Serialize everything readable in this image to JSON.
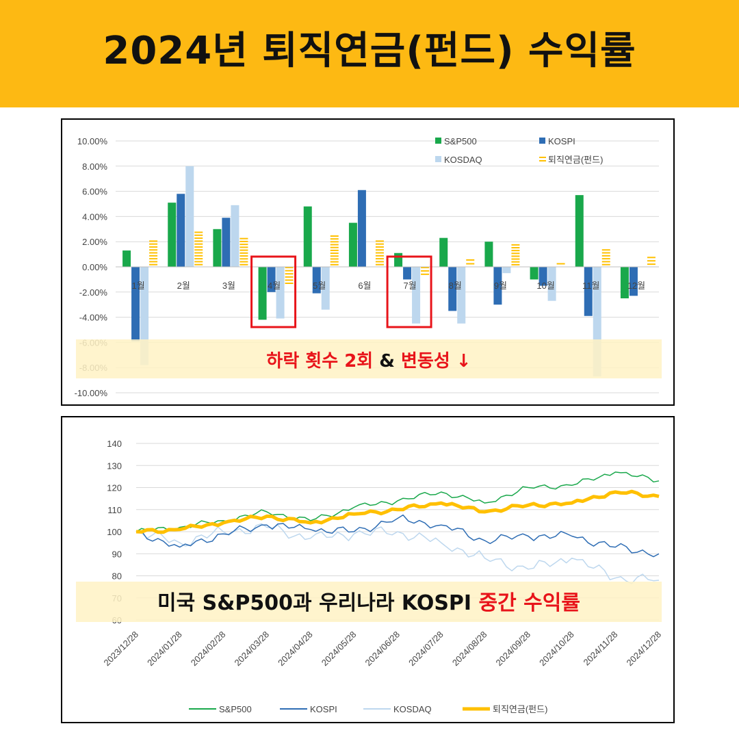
{
  "header": {
    "title": "2024년 퇴직연금(펀드) 수익률"
  },
  "colors": {
    "header_bg": "#FDB913",
    "sp500": "#19A84B",
    "kospi": "#2E6DB4",
    "kosdaq": "#BDD7EE",
    "pension": "#FFC000",
    "highlight": "#FFF2C4",
    "alert_red": "#E8141A"
  },
  "annotations": {
    "top_banner": {
      "part1": "하락 횟수 2회",
      "part2": " & ",
      "part3": "변동성 ↓"
    },
    "bottom_banner": {
      "part1": "미국 S&P500과 우리나라 KOSPI ",
      "part2": "중간 수익률"
    }
  },
  "chart_data": [
    {
      "type": "bar",
      "categories": [
        "1월",
        "2월",
        "3월",
        "4월",
        "5월",
        "6월",
        "7월",
        "8월",
        "9월",
        "10월",
        "11월",
        "12월"
      ],
      "ylim": [
        -10,
        10
      ],
      "yticks": [
        "10.00%",
        "8.00%",
        "6.00%",
        "4.00%",
        "2.00%",
        "0.00%",
        "-2.00%",
        "-4.00%",
        "-6.00%",
        "-8.00%",
        "-10.00%"
      ],
      "grid": true,
      "legend_position": "top-right",
      "series": [
        {
          "name": "S&P500",
          "values": [
            1.3,
            5.1,
            3.0,
            -4.2,
            4.8,
            3.5,
            1.1,
            2.3,
            2.0,
            -1.0,
            5.7,
            -2.5
          ]
        },
        {
          "name": "KOSPI",
          "values": [
            -5.9,
            5.8,
            3.9,
            -2.0,
            -2.1,
            6.1,
            -1.0,
            -3.5,
            -3.0,
            -1.5,
            -3.9,
            -2.3
          ]
        },
        {
          "name": "KOSDAQ",
          "values": [
            -7.8,
            8.0,
            4.9,
            -4.1,
            -3.4,
            0.0,
            -4.5,
            -4.5,
            -0.5,
            -2.7,
            -8.7,
            0.0
          ]
        },
        {
          "name": "퇴직연금(펀드)",
          "values": [
            2.1,
            2.8,
            2.3,
            -1.5,
            2.5,
            2.1,
            -0.8,
            0.6,
            1.8,
            0.3,
            1.4,
            0.8
          ]
        }
      ],
      "highlight_boxes": [
        "4월",
        "7월"
      ]
    },
    {
      "type": "line",
      "ylim": [
        60,
        140
      ],
      "yticks": [
        140,
        130,
        120,
        110,
        100,
        90,
        80,
        70,
        60
      ],
      "x_ticks": [
        "2023/12/28",
        "2024/01/28",
        "2024/02/28",
        "2024/03/28",
        "2024/04/28",
        "2024/05/28",
        "2024/06/28",
        "2024/07/28",
        "2024/08/28",
        "2024/09/28",
        "2024/10/28",
        "2024/11/28",
        "2024/12/28"
      ],
      "grid": true,
      "legend_position": "bottom",
      "series": [
        {
          "name": "S&P500",
          "values": [
            100,
            102,
            105,
            109,
            105,
            111,
            114,
            118,
            113,
            120,
            121,
            127,
            123
          ]
        },
        {
          "name": "KOSPI",
          "values": [
            100,
            93,
            99,
            103,
            101,
            100,
            106,
            103,
            96,
            98,
            98,
            93,
            90
          ]
        },
        {
          "name": "KOSDAQ",
          "values": [
            100,
            95,
            100,
            102,
            97,
            99,
            100,
            95,
            88,
            83,
            88,
            79,
            78
          ]
        },
        {
          "name": "퇴직연금(펀드)",
          "values": [
            100,
            101,
            104,
            107,
            104,
            108,
            110,
            113,
            109,
            112,
            113,
            118,
            116
          ]
        }
      ]
    }
  ]
}
